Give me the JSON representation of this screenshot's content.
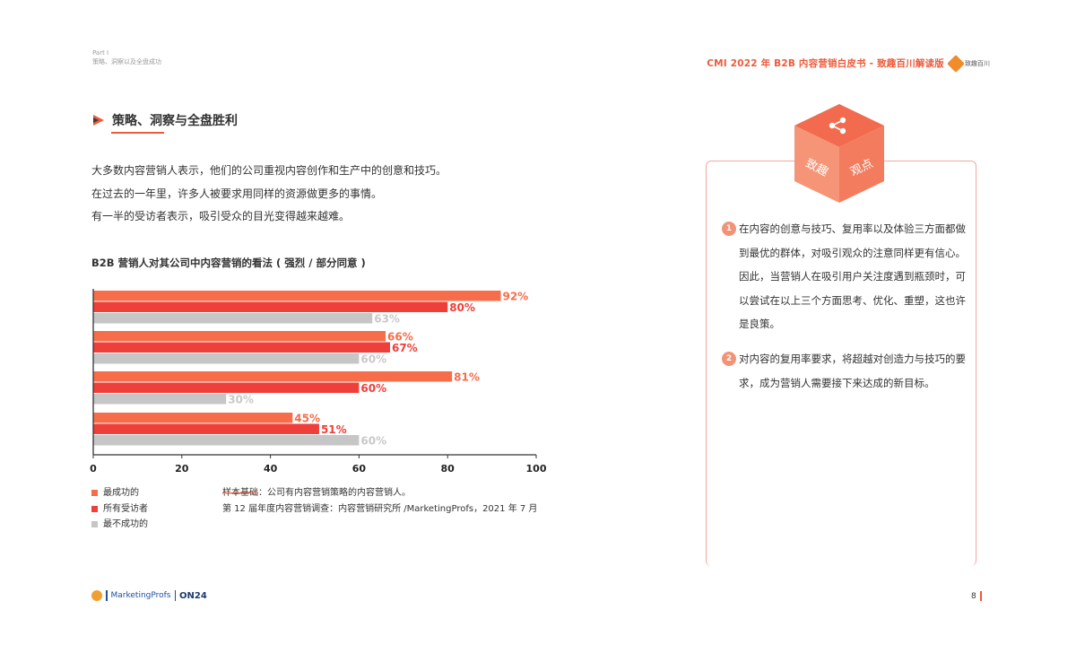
{
  "header": {
    "part": "Part I",
    "part_subtitle": "策略、洞察以及全盘成功",
    "title": "CMI 2022 年 B2B 内容营销白皮书 - 致趣百川解读版",
    "logo_text": "致趣百川"
  },
  "section": {
    "title": "策略、洞察与全盘胜利",
    "intro": [
      "大多数内容营销人表示，他们的公司重视内容创作和生产中的创意和技巧。",
      "在过去的一年里，许多人被要求用同样的资源做更多的事情。",
      "有一半的受访者表示，吸引受众的目光变得越来越难。"
    ]
  },
  "chart_data": {
    "type": "bar",
    "orientation": "horizontal",
    "title": "B2B 营销人对其公司中内容营销的看法 ( 强烈 / 部分同意 )",
    "xlim": [
      0,
      100
    ],
    "xticks": [
      "0",
      "20",
      "40",
      "60",
      "80",
      "100"
    ],
    "groups": 4,
    "series": [
      {
        "name": "最成功的",
        "color": "#f76d4a",
        "values": [
          92,
          66,
          81,
          45
        ]
      },
      {
        "name": "所有受访者",
        "color": "#ee3f3a",
        "values": [
          80,
          67,
          60,
          51
        ]
      },
      {
        "name": "最不成功的",
        "color": "#c6c6c6",
        "values": [
          63,
          60,
          30,
          60
        ]
      }
    ],
    "legend_position": "bottom-left"
  },
  "source": {
    "line1_label": "样本基础",
    "line1_text": "：公司有内容营销策略的内容营销人。",
    "line2": "第 12 届年度内容营销调查：内容营销研究所 /MarketingProfs，2021 年 7 月"
  },
  "panel": {
    "cube_left": "致趣",
    "cube_right": "观点",
    "insights": [
      {
        "num": "1",
        "text": "在内容的创意与技巧、复用率以及体验三方面都做到最优的群体，对吸引观众的注意同样更有信心。因此，当营销人在吸引用户关注度遇到瓶颈时，可以尝试在以上三个方面思考、优化、重塑，这也许是良策。"
      },
      {
        "num": "2",
        "text": "对内容的复用率要求，将超越对创造力与技巧的要求，成为营销人需要接下来达成的新目标。"
      }
    ]
  },
  "footer": {
    "marketingprofs": "MarketingProfs",
    "on24": "ON24",
    "page": "8"
  }
}
